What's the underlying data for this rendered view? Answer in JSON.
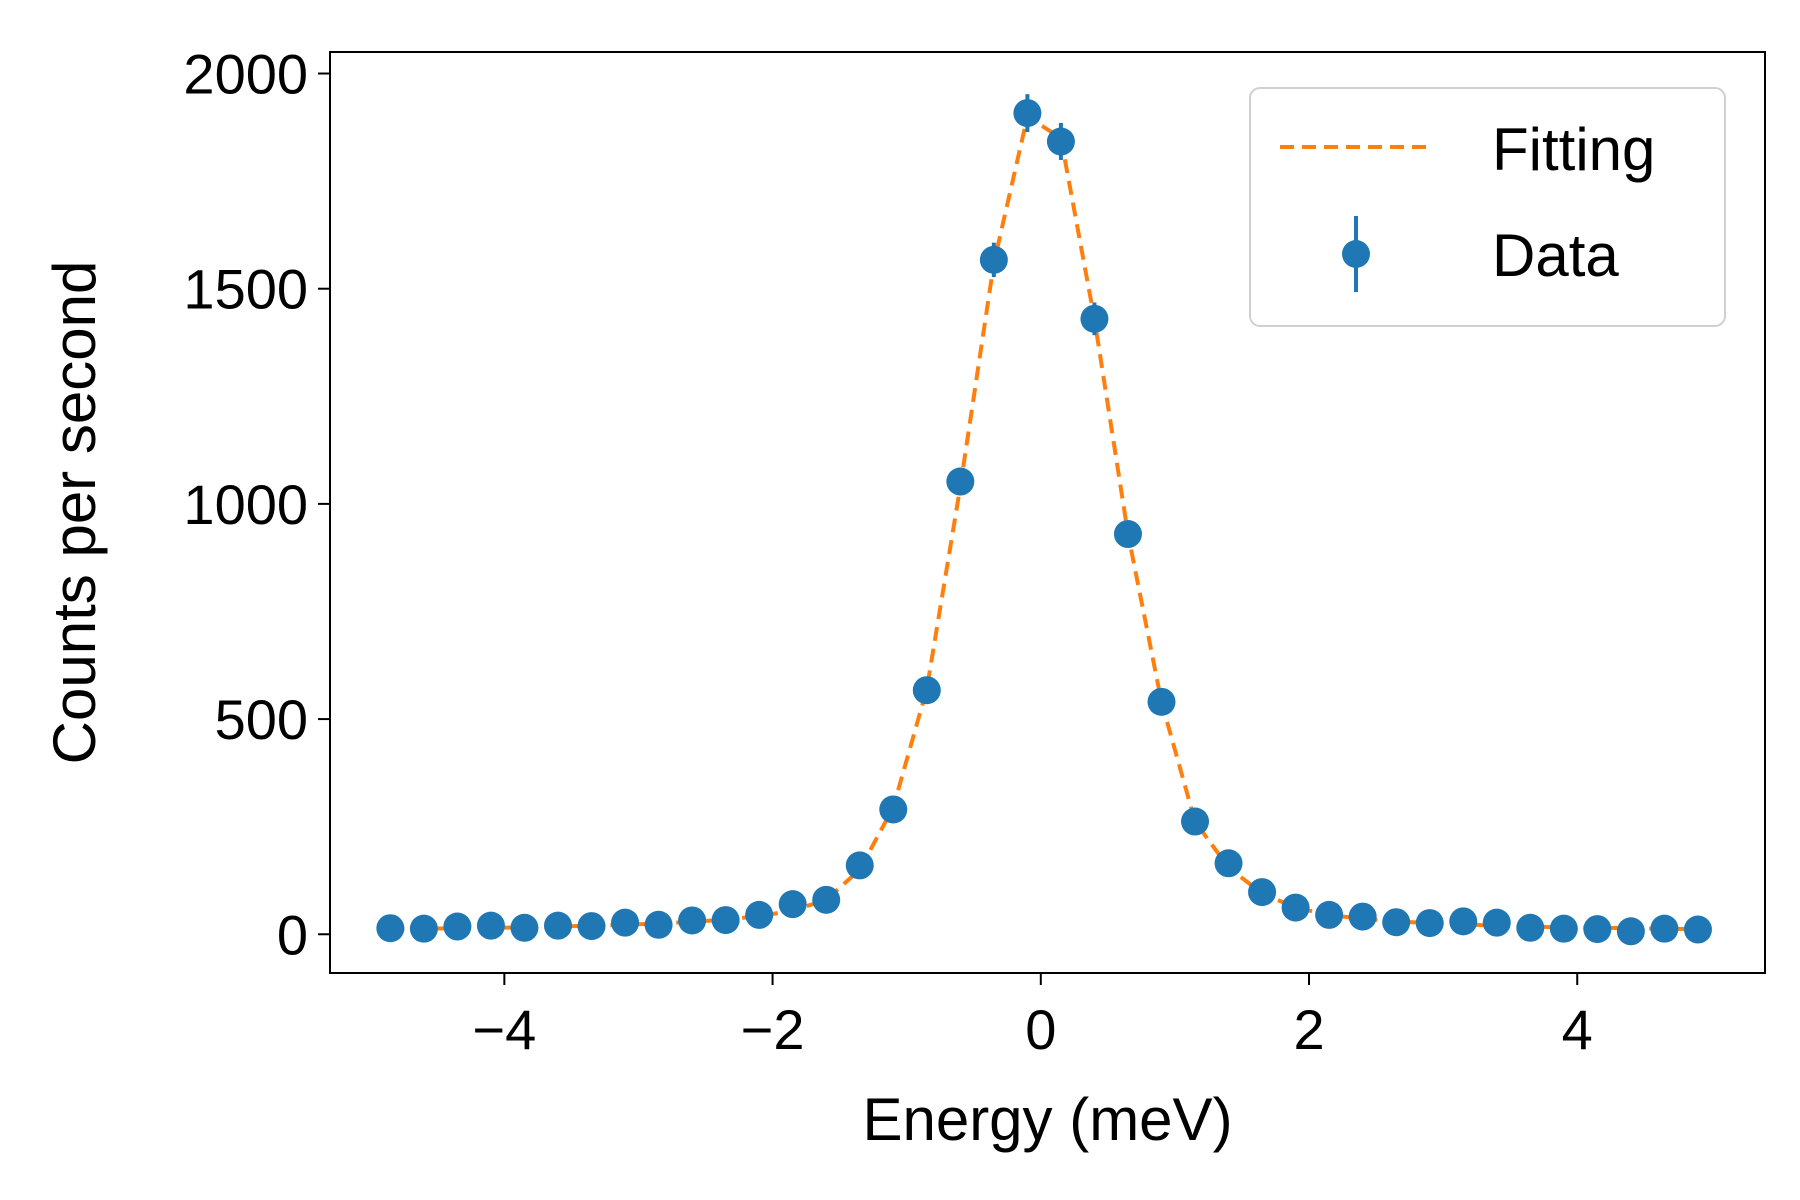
{
  "chart_data": {
    "type": "scatter",
    "title": "",
    "xlabel": "Energy (meV)",
    "ylabel": "Counts per second",
    "xlim": [
      -5.3,
      5.4
    ],
    "ylim": [
      -90,
      2050
    ],
    "xticks": [
      -4,
      -2,
      0,
      2,
      4
    ],
    "xtick_labels": [
      "−4",
      "−2",
      "0",
      "2",
      "4"
    ],
    "yticks": [
      0,
      500,
      1000,
      1500,
      2000
    ],
    "ytick_labels": [
      "0",
      "500",
      "1000",
      "1500",
      "2000"
    ],
    "grid": false,
    "legend_position": "top-right",
    "colors": {
      "data": "#1f77b4",
      "fit": "#ff7f0e",
      "legend_border": "#d0d0d0"
    },
    "series": [
      {
        "name": "Fitting",
        "style": "dashed-line",
        "x": [
          -4.85,
          -4.6,
          -4.35,
          -4.1,
          -3.85,
          -3.6,
          -3.35,
          -3.1,
          -2.85,
          -2.6,
          -2.35,
          -2.1,
          -1.85,
          -1.6,
          -1.35,
          -1.1,
          -0.85,
          -0.6,
          -0.35,
          -0.1,
          0.15,
          0.4,
          0.65,
          0.9,
          1.15,
          1.4,
          1.65,
          1.9,
          2.15,
          2.4,
          2.65,
          2.9,
          3.15,
          3.4,
          3.65,
          3.9,
          4.15,
          4.4,
          4.65,
          4.9
        ],
        "y": [
          12,
          13,
          14,
          15,
          16,
          18,
          20,
          22,
          25,
          29,
          34,
          42,
          55,
          80,
          150,
          295,
          570,
          1040,
          1560,
          1900,
          1850,
          1430,
          930,
          540,
          262,
          155,
          95,
          62,
          45,
          36,
          30,
          26,
          23,
          20,
          18,
          16,
          15,
          14,
          13,
          12
        ]
      },
      {
        "name": "Data",
        "style": "errorbar-markers",
        "x": [
          -4.85,
          -4.6,
          -4.35,
          -4.1,
          -3.85,
          -3.6,
          -3.35,
          -3.1,
          -2.85,
          -2.6,
          -2.35,
          -2.1,
          -1.85,
          -1.6,
          -1.35,
          -1.1,
          -0.85,
          -0.6,
          -0.35,
          -0.1,
          0.15,
          0.4,
          0.65,
          0.9,
          1.15,
          1.4,
          1.65,
          1.9,
          2.15,
          2.4,
          2.65,
          2.9,
          3.15,
          3.4,
          3.65,
          3.9,
          4.15,
          4.4,
          4.65,
          4.9
        ],
        "y": [
          14,
          13,
          18,
          20,
          15,
          20,
          19,
          27,
          22,
          32,
          33,
          45,
          70,
          80,
          160,
          290,
          567,
          1052,
          1567,
          1908,
          1842,
          1430,
          930,
          540,
          262,
          165,
          98,
          62,
          45,
          41,
          28,
          26,
          30,
          27,
          15,
          13,
          12,
          7,
          13,
          11
        ],
        "yerr": [
          4,
          4,
          4,
          4,
          4,
          4,
          4,
          5,
          5,
          6,
          6,
          7,
          8,
          9,
          13,
          17,
          24,
          32,
          40,
          44,
          43,
          38,
          30,
          23,
          16,
          13,
          10,
          8,
          7,
          6,
          5,
          5,
          5,
          5,
          4,
          4,
          3,
          3,
          4,
          3
        ]
      }
    ]
  }
}
